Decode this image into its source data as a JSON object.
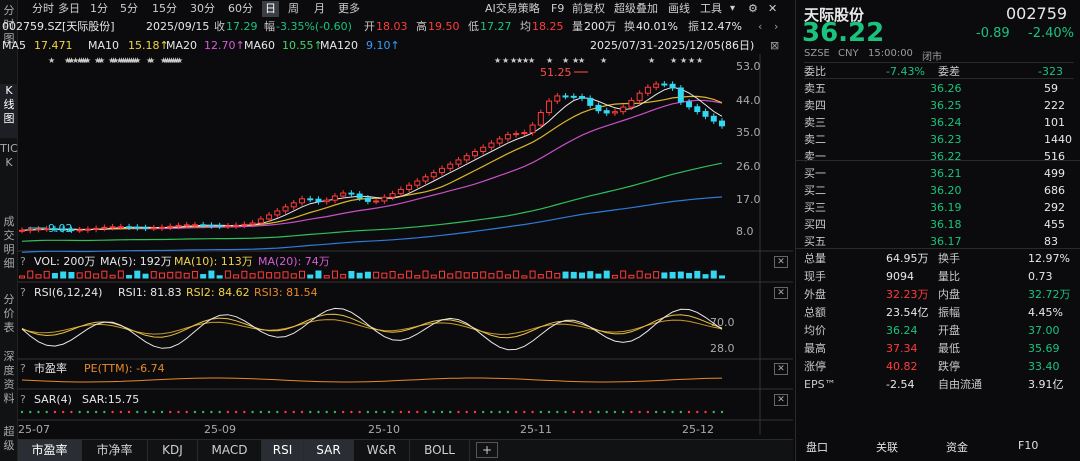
{
  "toolbar": {
    "periods": [
      "分时",
      "多日",
      "1分",
      "5分",
      "15分",
      "30分",
      "60分",
      "日",
      "周",
      "月",
      "更多"
    ],
    "active_period": "日",
    "tools": [
      "AI交易策略",
      "F9",
      "前复权",
      "超级叠加",
      "画线",
      "工具"
    ]
  },
  "left_tabs": [
    "分时图",
    "K线图",
    "TICK",
    "成交明细",
    "分价表",
    "深度资料",
    "超级"
  ],
  "info": {
    "code": "002759.SZ[天际股份]",
    "date": "2025/09/15",
    "close_label": "收",
    "close": "17.29",
    "change_label": "幅",
    "change": "-3.35%(-0.60)",
    "open_label": "开",
    "open": "18.03",
    "high_label": "高",
    "high": "19.50",
    "low_label": "低",
    "low": "17.27",
    "lower_label": "均",
    "lower": "18.25",
    "vol_label": "量",
    "vol": "200万",
    "turnover_label": "换",
    "turnover": "40.01%",
    "amp_label": "振",
    "amp": "12.47%"
  },
  "ma": {
    "ma5_label": "MA5",
    "ma5": "17.471",
    "ma10_label": "MA10",
    "ma10": "15.18↑",
    "ma20_label": "MA20",
    "ma20": "12.70↑",
    "ma60_label": "MA60",
    "ma60": "10.55↑",
    "ma120_label": "MA120",
    "ma120": "9.10↑",
    "range": "2025/07/31-2025/12/05(86日)"
  },
  "kline": {
    "y_ticks": [
      "53.0",
      "44.0",
      "35.0",
      "26.0",
      "17.0",
      "8.0"
    ],
    "x_ticks": [
      "25-07",
      "25-09",
      "25-10",
      "25-11",
      "25-12"
    ],
    "high_mark": "51.25",
    "low_mark": "9.02",
    "stars": "★"
  },
  "vol_panel": {
    "title": "VOL: 200万",
    "ma5": "MA(5): 192万",
    "ma10": "MA(10): 113万",
    "ma20": "MA(20): 74万"
  },
  "rsi_panel": {
    "title": "RSI(6,12,24)",
    "rsi1": "RSI1: 81.83",
    "rsi2": "RSI2: 84.62",
    "rsi3": "RSI3: 81.54",
    "ticks": [
      "70.0",
      "28.0"
    ]
  },
  "pe_panel": {
    "title": "市盈率",
    "value": "PE(TTM): -6.74"
  },
  "sar_panel": {
    "title": "SAR(4)",
    "value": "SAR:15.75"
  },
  "bottom_tabs": [
    "市盈率",
    "市净率",
    "KDJ",
    "MACD",
    "RSI",
    "SAR",
    "W&R",
    "BOLL",
    "+"
  ],
  "quote": {
    "name": "天际股份",
    "code": "002759",
    "price": "36.22",
    "change": "-0.89",
    "change_pct": "-2.40%",
    "meta1": "SZSE",
    "meta2": "CNY",
    "meta3": "15:00:00",
    "meta4": "闭市",
    "weibi_label": "委比",
    "weibi": "-7.43%",
    "weicha_label": "委差",
    "weicha": "-323",
    "sells": [
      {
        "label": "卖五",
        "price": "36.26",
        "vol": "59"
      },
      {
        "label": "卖四",
        "price": "36.25",
        "vol": "222"
      },
      {
        "label": "卖三",
        "price": "36.24",
        "vol": "101"
      },
      {
        "label": "卖二",
        "price": "36.23",
        "vol": "1440"
      },
      {
        "label": "卖一",
        "price": "36.22",
        "vol": "516"
      }
    ],
    "buys": [
      {
        "label": "买一",
        "price": "36.21",
        "vol": "499"
      },
      {
        "label": "买二",
        "price": "36.20",
        "vol": "686"
      },
      {
        "label": "买三",
        "price": "36.19",
        "price_hide": "",
        "vol": "292"
      },
      {
        "label": "买四",
        "price": "36.18",
        "vol": "455"
      },
      {
        "label": "买五",
        "price": "36.17",
        "vol": "83"
      }
    ],
    "stats": [
      {
        "l1": "总量",
        "v1": "64.95万",
        "l2": "换手",
        "v2": "12.97%",
        "c1": "white",
        "c2": "white"
      },
      {
        "l1": "现手",
        "v1": "9094",
        "l2": "量比",
        "v2": "0.73",
        "c1": "white",
        "c2": "white"
      },
      {
        "l1": "外盘",
        "v1": "32.23万",
        "l2": "内盘",
        "v2": "32.72万",
        "c1": "red",
        "c2": "green"
      },
      {
        "l1": "总额",
        "v1": "23.54亿",
        "l2": "振幅",
        "v2": "4.45%",
        "c1": "white",
        "c2": "white"
      },
      {
        "l1": "均价",
        "v1": "36.24",
        "l2": "开盘",
        "v2": "37.00",
        "c1": "green",
        "c2": "green"
      },
      {
        "l1": "最高",
        "v1": "37.34",
        "l2": "最低",
        "v2": "35.69",
        "c1": "red",
        "c2": "green"
      },
      {
        "l1": "涨停",
        "v1": "40.82",
        "l2": "跌停",
        "v2": "33.40",
        "c1": "red",
        "c2": "green"
      },
      {
        "l1": "EPS™",
        "v1": "-2.54",
        "l2": "自由流通",
        "v2": "3.91亿",
        "c1": "white",
        "c2": "white"
      }
    ],
    "bottom_tabs": [
      "盘口",
      "关联",
      "资金",
      "F10"
    ]
  }
}
